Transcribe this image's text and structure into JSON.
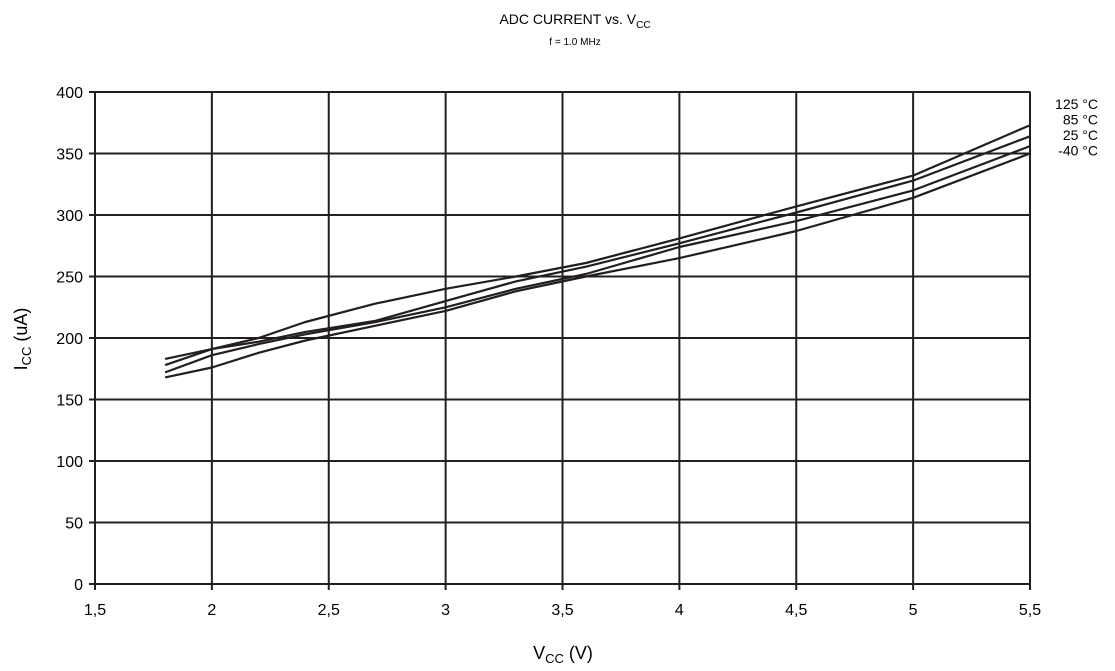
{
  "chart_data": {
    "type": "line",
    "title": {
      "main": "ADC CURRENT vs. V",
      "main_sub": "CC"
    },
    "subtitle": "f = 1.0 MHz",
    "xlabel": {
      "main": "V",
      "sub": "CC",
      "suffix": " (V)"
    },
    "ylabel": {
      "main": "I",
      "sub": "CC",
      "suffix": " (uA)"
    },
    "xlim": [
      1.5,
      5.5
    ],
    "ylim": [
      0,
      400
    ],
    "x_ticks": [
      1.5,
      2,
      2.5,
      3,
      3.5,
      4,
      4.5,
      5,
      5.5
    ],
    "x_tick_labels": [
      "1,5",
      "2",
      "2,5",
      "3",
      "3,5",
      "4",
      "4,5",
      "5",
      "5,5"
    ],
    "y_ticks": [
      0,
      50,
      100,
      150,
      200,
      250,
      300,
      350,
      400
    ],
    "y_tick_labels": [
      "0",
      "50",
      "100",
      "150",
      "200",
      "250",
      "300",
      "350",
      "400"
    ],
    "grid": true,
    "legend_position": "right, outside plot near top",
    "line_color": "#231f20",
    "x": [
      1.8,
      2.0,
      2.2,
      2.4,
      2.7,
      3.0,
      3.3,
      3.6,
      4.0,
      4.5,
      5.0,
      5.5
    ],
    "series": [
      {
        "name": "125 °C",
        "values": [
          183,
          191,
          200,
          213,
          228,
          240,
          250,
          261,
          281,
          307,
          332,
          373
        ]
      },
      {
        "name": "85 °C",
        "values": [
          178,
          191,
          197,
          205,
          214,
          230,
          246,
          258,
          277,
          302,
          328,
          364
        ]
      },
      {
        "name": "25 °C",
        "values": [
          172,
          186,
          195,
          203,
          213,
          225,
          240,
          252,
          274,
          295,
          320,
          356
        ]
      },
      {
        "name": "-40 °C",
        "values": [
          168,
          176,
          188,
          198,
          210,
          222,
          238,
          250,
          265,
          287,
          314,
          350
        ]
      }
    ]
  }
}
